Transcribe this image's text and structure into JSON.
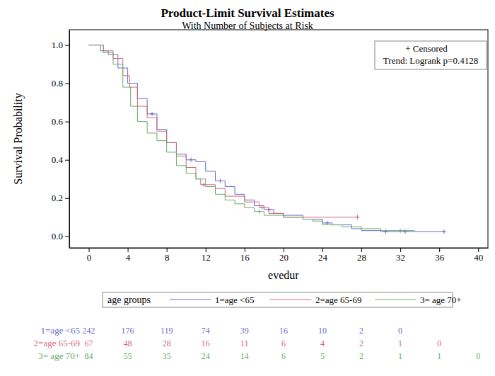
{
  "chart_data": {
    "type": "step",
    "title": "Product-Limit Survival Estimates",
    "subtitle": "With Number of Subjects at Risk",
    "x_label": "evedur",
    "y_label": "Survival Probability",
    "annotations": [
      "+ Censored",
      "Trend: Logrank p=0.4128"
    ],
    "legend": "bottom",
    "legend_title": "age groups",
    "grid": false,
    "xlim": [
      -2,
      41
    ],
    "ylim": [
      -0.06,
      1.08
    ],
    "xticks": [
      0,
      4,
      8,
      12,
      16,
      20,
      24,
      28,
      32,
      36,
      40
    ],
    "yticks": [
      {
        "value": 0,
        "label": "0.0"
      },
      0.2,
      0.4,
      0.6,
      0.8,
      {
        "value": 1,
        "label": "1.0"
      }
    ],
    "series": [
      {
        "name": "1=age <65",
        "color": "#6a6ac8",
        "line_style": "solid",
        "marker": "plus",
        "x": [
          0,
          1.2,
          2,
          3,
          4,
          5,
          6,
          7,
          8,
          9,
          10,
          11,
          12,
          13,
          14,
          15,
          16,
          17,
          18,
          19,
          20,
          22,
          24,
          25,
          27,
          28,
          30,
          36.5
        ],
        "values": [
          1.0,
          0.97,
          0.95,
          0.88,
          0.8,
          0.72,
          0.64,
          0.56,
          0.49,
          0.43,
          0.4,
          0.39,
          0.34,
          0.29,
          0.26,
          0.22,
          0.19,
          0.16,
          0.14,
          0.12,
          0.11,
          0.09,
          0.07,
          0.06,
          0.04,
          0.03,
          0.025,
          0.025
        ],
        "censored_x": [
          6.5,
          10.5,
          13.5,
          18.5,
          24.5,
          30.5,
          32.5,
          36.5
        ],
        "censored_values": [
          0.64,
          0.4,
          0.29,
          0.14,
          0.07,
          0.025,
          0.025,
          0.025
        ],
        "at_risk_x": [
          0,
          4,
          8,
          12,
          16,
          20,
          24,
          28,
          32
        ],
        "at_risk": [
          242,
          176,
          119,
          74,
          39,
          16,
          10,
          2,
          0
        ]
      },
      {
        "name": "2=age 65-69",
        "color": "#d06a78",
        "line_style": "solid",
        "marker": "plus",
        "x": [
          0,
          1.5,
          2.5,
          3.5,
          4.2,
          5,
          6,
          7,
          8,
          9,
          10,
          11,
          11.5,
          13,
          14,
          16,
          17.5,
          18.5,
          20,
          27.6
        ],
        "values": [
          1.0,
          0.97,
          0.93,
          0.84,
          0.78,
          0.68,
          0.62,
          0.55,
          0.49,
          0.42,
          0.36,
          0.3,
          0.27,
          0.25,
          0.21,
          0.18,
          0.15,
          0.12,
          0.1,
          0.1
        ],
        "censored_x": [
          11.8,
          17.8,
          27.6
        ],
        "censored_values": [
          0.27,
          0.15,
          0.1
        ],
        "at_risk_x": [
          0,
          4,
          8,
          12,
          16,
          20,
          24,
          28,
          32,
          36
        ],
        "at_risk": [
          67,
          48,
          28,
          16,
          11,
          6,
          4,
          2,
          1,
          0
        ]
      },
      {
        "name": "3= age 70+",
        "color": "#6aaa6a",
        "line_style": "solid",
        "marker": "plus",
        "x": [
          0,
          1.5,
          2.5,
          3.5,
          4.3,
          5,
          6,
          7,
          8,
          9,
          10,
          11,
          12,
          13,
          14,
          15,
          16,
          17,
          18,
          20,
          22,
          23,
          24,
          26,
          28,
          30,
          33.5
        ],
        "values": [
          1.0,
          0.96,
          0.9,
          0.78,
          0.68,
          0.6,
          0.54,
          0.5,
          0.44,
          0.37,
          0.33,
          0.3,
          0.26,
          0.22,
          0.19,
          0.17,
          0.15,
          0.13,
          0.11,
          0.1,
          0.09,
          0.08,
          0.06,
          0.05,
          0.04,
          0.03,
          0.03
        ],
        "censored_x": [
          17.5,
          32
        ],
        "censored_values": [
          0.13,
          0.03
        ],
        "at_risk_x": [
          0,
          4,
          8,
          12,
          16,
          20,
          24,
          28,
          32,
          36,
          40
        ],
        "at_risk": [
          84,
          55,
          35,
          24,
          14,
          6,
          5,
          2,
          1,
          1,
          0
        ]
      }
    ]
  }
}
